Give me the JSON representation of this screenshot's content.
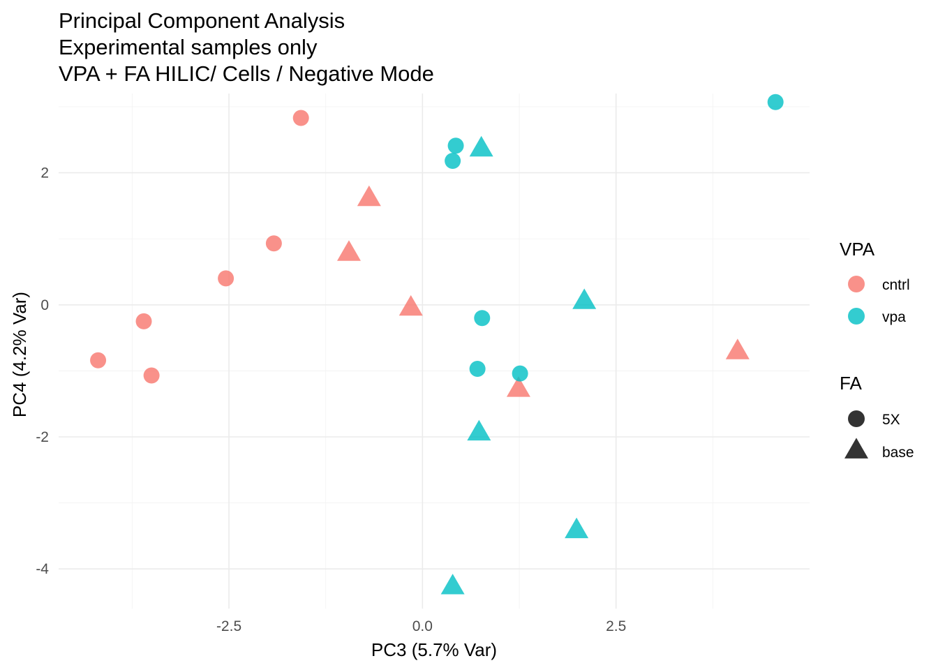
{
  "chart_data": {
    "type": "scatter",
    "title_lines": [
      "Principal Component Analysis",
      "Experimental samples only",
      "VPA + FA HILIC/ Cells / Negative Mode"
    ],
    "xlabel": "PC3 (5.7% Var)",
    "ylabel": "PC4 (4.2% Var)",
    "xlim": [
      -4.7,
      5.0
    ],
    "ylim": [
      -4.6,
      3.2
    ],
    "x_ticks": [
      -2.5,
      0.0,
      2.5
    ],
    "x_tick_labels": [
      "-2.5",
      "0.0",
      "2.5"
    ],
    "y_ticks": [
      -4,
      -2,
      0,
      2
    ],
    "y_tick_labels": [
      "-4",
      "-2",
      "0",
      "2"
    ],
    "grid": true,
    "legend_position": "right",
    "color_legend": {
      "title": "VPA",
      "entries": [
        {
          "label": "cntrl",
          "color": "#F8766D"
        },
        {
          "label": "vpa",
          "color": "#00BFC4"
        }
      ]
    },
    "shape_legend": {
      "title": "FA",
      "entries": [
        {
          "label": "5X",
          "shape": "circle"
        },
        {
          "label": "base",
          "shape": "triangle"
        }
      ]
    },
    "points": [
      {
        "x": -1.57,
        "y": 2.83,
        "vpa": "cntrl",
        "fa": "5X"
      },
      {
        "x": -1.92,
        "y": 0.93,
        "vpa": "cntrl",
        "fa": "5X"
      },
      {
        "x": -2.54,
        "y": 0.4,
        "vpa": "cntrl",
        "fa": "5X"
      },
      {
        "x": -3.6,
        "y": -0.25,
        "vpa": "cntrl",
        "fa": "5X"
      },
      {
        "x": -4.19,
        "y": -0.84,
        "vpa": "cntrl",
        "fa": "5X"
      },
      {
        "x": -3.5,
        "y": -1.07,
        "vpa": "cntrl",
        "fa": "5X"
      },
      {
        "x": -0.69,
        "y": 1.6,
        "vpa": "cntrl",
        "fa": "base"
      },
      {
        "x": -0.95,
        "y": 0.77,
        "vpa": "cntrl",
        "fa": "base"
      },
      {
        "x": -0.15,
        "y": -0.06,
        "vpa": "cntrl",
        "fa": "base"
      },
      {
        "x": 1.24,
        "y": -1.29,
        "vpa": "cntrl",
        "fa": "base"
      },
      {
        "x": 4.07,
        "y": -0.72,
        "vpa": "cntrl",
        "fa": "base"
      },
      {
        "x": 4.56,
        "y": 3.07,
        "vpa": "vpa",
        "fa": "5X"
      },
      {
        "x": 0.43,
        "y": 2.41,
        "vpa": "vpa",
        "fa": "5X"
      },
      {
        "x": 0.39,
        "y": 2.18,
        "vpa": "vpa",
        "fa": "5X"
      },
      {
        "x": 0.77,
        "y": -0.2,
        "vpa": "vpa",
        "fa": "5X"
      },
      {
        "x": 0.71,
        "y": -0.97,
        "vpa": "vpa",
        "fa": "5X"
      },
      {
        "x": 1.26,
        "y": -1.04,
        "vpa": "vpa",
        "fa": "5X"
      },
      {
        "x": 0.76,
        "y": 2.35,
        "vpa": "vpa",
        "fa": "base"
      },
      {
        "x": 2.09,
        "y": 0.04,
        "vpa": "vpa",
        "fa": "base"
      },
      {
        "x": 0.73,
        "y": -1.95,
        "vpa": "vpa",
        "fa": "base"
      },
      {
        "x": 1.99,
        "y": -3.43,
        "vpa": "vpa",
        "fa": "base"
      },
      {
        "x": 0.39,
        "y": -4.28,
        "vpa": "vpa",
        "fa": "base"
      }
    ]
  }
}
